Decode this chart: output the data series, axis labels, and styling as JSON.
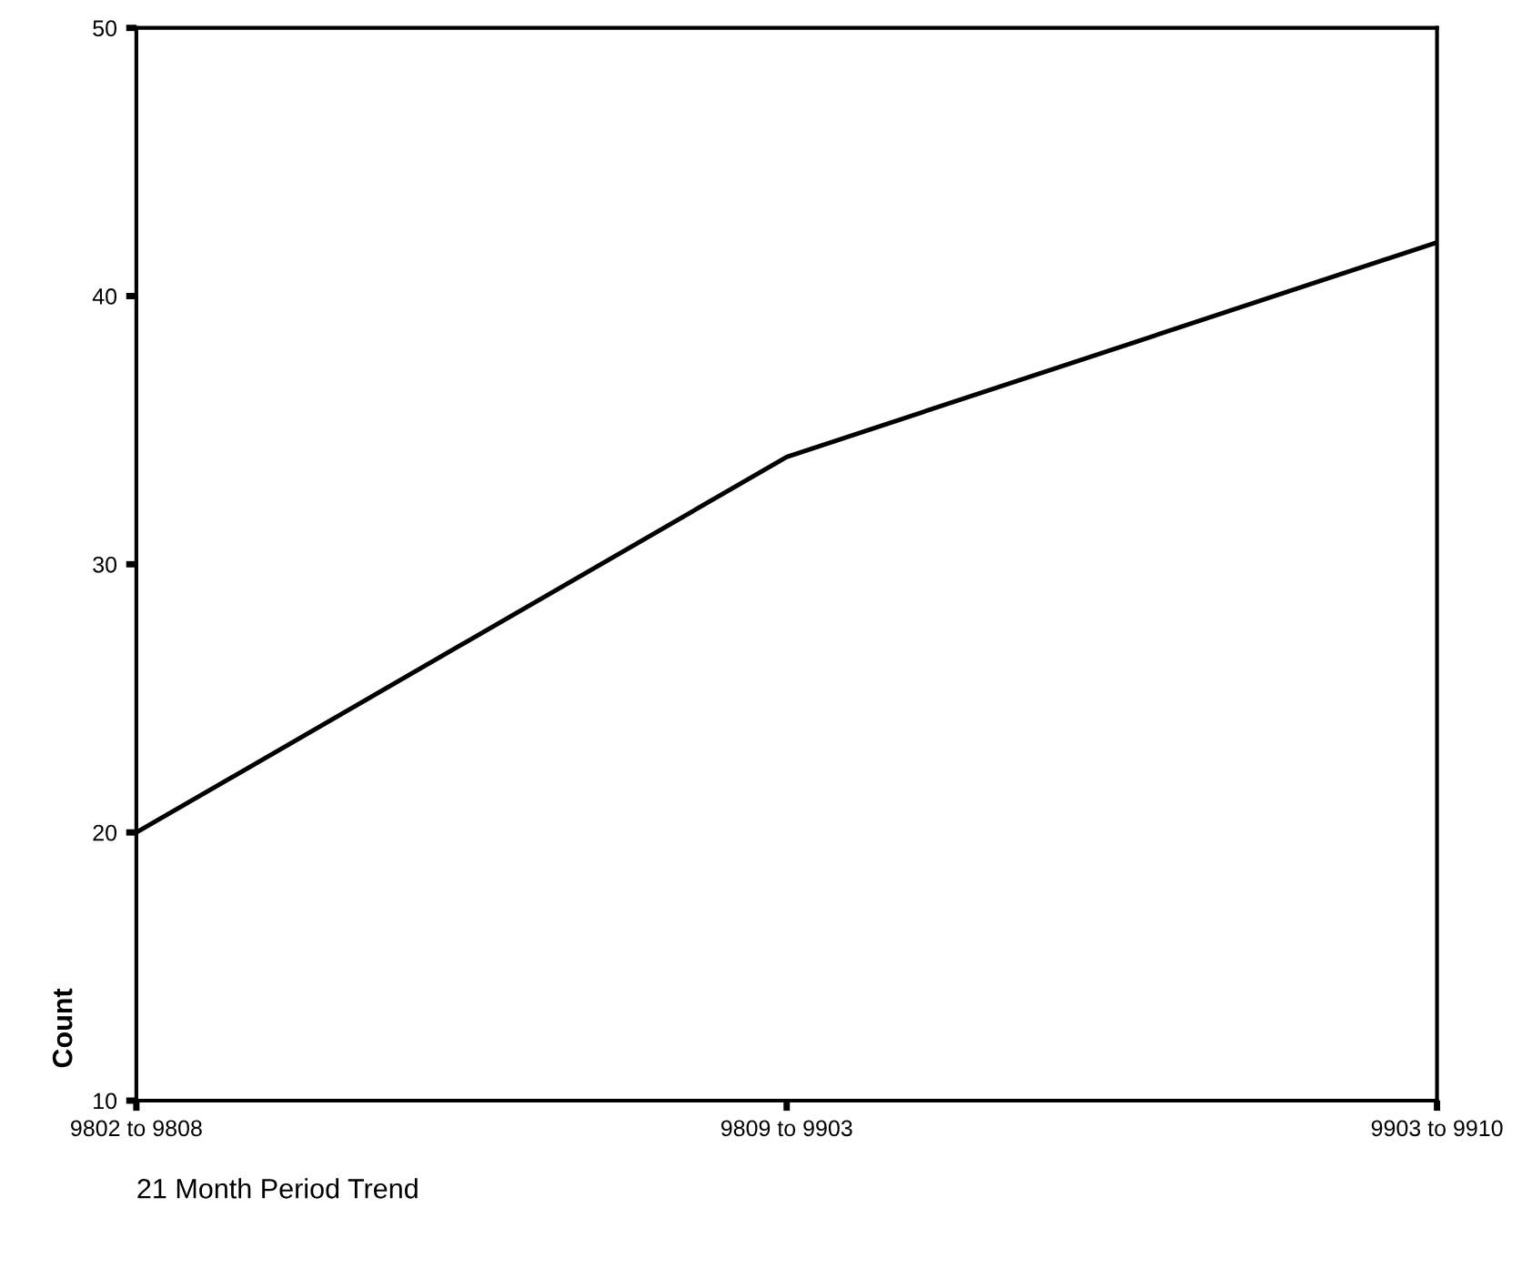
{
  "chart_data": {
    "type": "line",
    "xlabel": "21 Month Period Trend",
    "ylabel": "Count",
    "categories": [
      "9802 to 9808",
      "9809 to 9903",
      "9903 to 9910"
    ],
    "series": [
      {
        "color": "#000000",
        "values": [
          20,
          34,
          42
        ]
      }
    ],
    "ylim": [
      10,
      50
    ],
    "yticks": [
      10,
      20,
      30,
      40,
      50
    ],
    "marker": "none",
    "line_style": "solid"
  }
}
